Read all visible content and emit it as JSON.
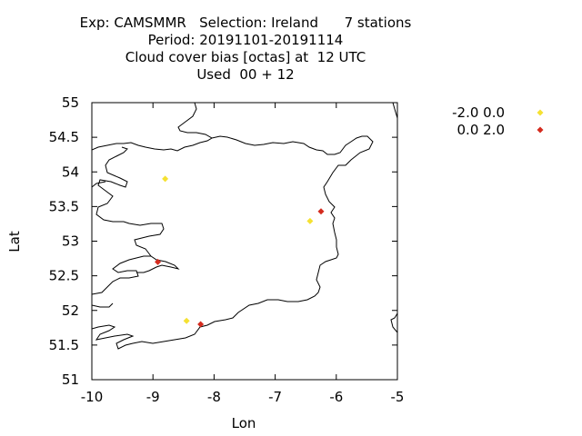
{
  "chart_data": {
    "type": "scatter",
    "title_lines": [
      "Exp: CAMSMMR   Selection: Ireland      7 stations",
      "Period: 20191101-20191114",
      "Cloud cover bias [octas] at  12 UTC",
      "Used  00 + 12"
    ],
    "xlabel": "Lon",
    "ylabel": "Lat",
    "xlim": [
      -10,
      -5
    ],
    "ylim": [
      51,
      55
    ],
    "xticks": [
      "-10",
      "-9",
      "-8",
      "-7",
      "-6",
      "-5"
    ],
    "yticks": [
      "51",
      "51.5",
      "52",
      "52.5",
      "53",
      "53.5",
      "54",
      "54.5",
      "55"
    ],
    "grid": false,
    "legend_position": "top-right-outside",
    "series": [
      {
        "name": "-2.0 0.0",
        "color": "#f5e132",
        "marker": "diamond",
        "points": [
          [
            -8.8,
            53.9
          ],
          [
            -6.43,
            53.29
          ],
          [
            -8.45,
            51.85
          ]
        ]
      },
      {
        "name": "0.0 2.0",
        "color": "#d42b1e",
        "marker": "diamond",
        "points": [
          [
            -6.25,
            53.43
          ],
          [
            -8.92,
            52.7
          ],
          [
            -8.22,
            51.8
          ]
        ]
      }
    ]
  }
}
